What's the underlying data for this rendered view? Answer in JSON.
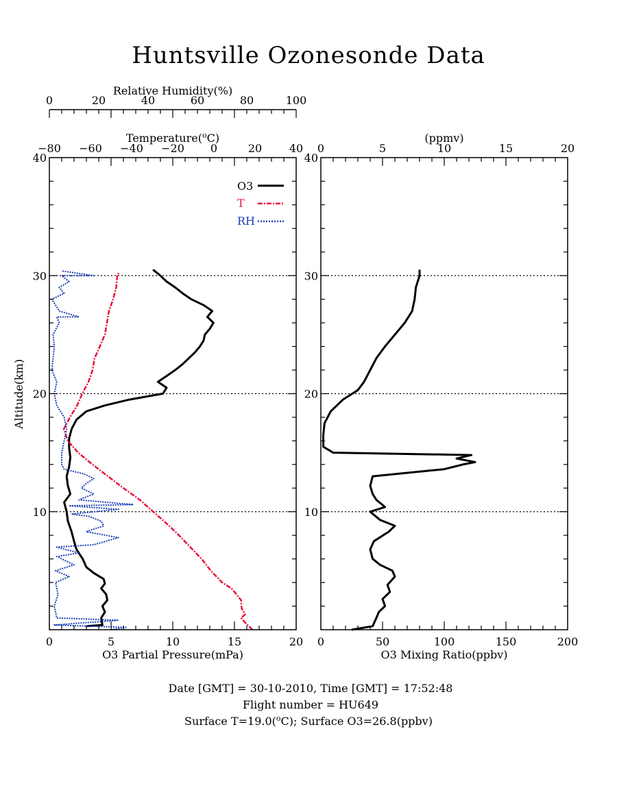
{
  "title": "Huntsville Ozonesonde Data",
  "colors": {
    "o3": "#000000",
    "temperature": "#e8103c",
    "rh": "#1a3fb5",
    "grid": "#000000"
  },
  "footer": {
    "line1": "Date [GMT] = 30-10-2010,  Time [GMT] = 17:52:48",
    "line2": "Flight number = HU649",
    "line3": "Surface T=19.0(°C); Surface O3=26.8(ppbv)"
  },
  "chart_data": [
    {
      "type": "line",
      "panel": "left",
      "ylabel": "Altitude(km)",
      "ylim": [
        0,
        40
      ],
      "yticks": [
        "10",
        "20",
        "30",
        "40"
      ],
      "grid_lines_at": [
        10,
        20,
        30
      ],
      "x_axes": {
        "o3": {
          "label": "O3 Partial Pressure(mPa)",
          "lim": [
            0,
            20
          ],
          "ticks": [
            "0",
            "5",
            "10",
            "15",
            "20"
          ]
        },
        "temperature": {
          "label": "Temperature(°C)",
          "lim": [
            -80,
            40
          ],
          "ticks": [
            "−80",
            "−60",
            "−40",
            "−20",
            "0",
            "20",
            "40"
          ]
        },
        "rh": {
          "label": "Relative Humidity(%)",
          "lim": [
            0,
            100
          ],
          "ticks": [
            "0",
            "20",
            "40",
            "60",
            "80",
            "100"
          ]
        }
      },
      "legend": {
        "position": "top-right",
        "entries": [
          "O3",
          "T",
          "RH"
        ]
      },
      "series": [
        {
          "name": "O3",
          "axis": "o3",
          "points": [
            [
              3.0,
              0.3
            ],
            [
              4.3,
              0.4
            ],
            [
              4.2,
              1.0
            ],
            [
              4.5,
              1.5
            ],
            [
              4.3,
              2.0
            ],
            [
              4.7,
              2.5
            ],
            [
              4.6,
              3.0
            ],
            [
              4.2,
              3.5
            ],
            [
              4.5,
              3.9
            ],
            [
              4.4,
              4.3
            ],
            [
              3.6,
              4.8
            ],
            [
              3.0,
              5.3
            ],
            [
              2.7,
              6.0
            ],
            [
              2.2,
              6.8
            ],
            [
              2.0,
              7.5
            ],
            [
              1.8,
              8.3
            ],
            [
              1.5,
              9.2
            ],
            [
              1.4,
              10.0
            ],
            [
              1.2,
              10.8
            ],
            [
              1.7,
              11.5
            ],
            [
              1.5,
              12.2
            ],
            [
              1.4,
              13.0
            ],
            [
              1.6,
              13.8
            ],
            [
              1.7,
              14.6
            ],
            [
              1.6,
              15.4
            ],
            [
              1.6,
              16.2
            ],
            [
              1.8,
              17.0
            ],
            [
              2.2,
              17.8
            ],
            [
              3.0,
              18.5
            ],
            [
              4.5,
              19.0
            ],
            [
              6.5,
              19.5
            ],
            [
              9.2,
              20.0
            ],
            [
              9.5,
              20.5
            ],
            [
              8.8,
              21.0
            ],
            [
              9.5,
              21.5
            ],
            [
              10.2,
              22.0
            ],
            [
              10.8,
              22.5
            ],
            [
              11.3,
              23.0
            ],
            [
              11.8,
              23.5
            ],
            [
              12.2,
              24.0
            ],
            [
              12.5,
              24.5
            ],
            [
              12.6,
              25.0
            ],
            [
              13.0,
              25.5
            ],
            [
              13.3,
              26.0
            ],
            [
              12.8,
              26.5
            ],
            [
              13.2,
              27.0
            ],
            [
              12.5,
              27.5
            ],
            [
              11.5,
              28.0
            ],
            [
              10.8,
              28.5
            ],
            [
              10.2,
              29.0
            ],
            [
              9.5,
              29.5
            ],
            [
              9.0,
              30.0
            ],
            [
              8.4,
              30.5
            ]
          ]
        },
        {
          "name": "T",
          "axis": "temperature",
          "points": [
            [
              18.8,
              0.0
            ],
            [
              15.8,
              0.5
            ],
            [
              13.2,
              1.0
            ],
            [
              15.2,
              1.3
            ],
            [
              13.5,
              1.8
            ],
            [
              13.2,
              2.5
            ],
            [
              11.0,
              3.0
            ],
            [
              8.5,
              3.5
            ],
            [
              4.0,
              4.0
            ],
            [
              -1.5,
              5.0
            ],
            [
              -6.0,
              6.0
            ],
            [
              -11.5,
              7.0
            ],
            [
              -17.0,
              8.0
            ],
            [
              -23.0,
              9.0
            ],
            [
              -29.5,
              10.0
            ],
            [
              -36.0,
              11.0
            ],
            [
              -44.0,
              12.0
            ],
            [
              -51.5,
              13.0
            ],
            [
              -59.0,
              14.0
            ],
            [
              -66.0,
              15.0
            ],
            [
              -71.0,
              16.0
            ],
            [
              -73.0,
              17.0
            ],
            [
              -70.0,
              18.0
            ],
            [
              -66.5,
              19.0
            ],
            [
              -64.0,
              20.0
            ],
            [
              -61.0,
              21.0
            ],
            [
              -59.0,
              22.0
            ],
            [
              -58.0,
              23.0
            ],
            [
              -55.5,
              24.0
            ],
            [
              -53.0,
              25.0
            ],
            [
              -52.0,
              26.0
            ],
            [
              -51.0,
              27.0
            ],
            [
              -49.0,
              28.0
            ],
            [
              -47.5,
              29.0
            ],
            [
              -47.0,
              30.0
            ],
            [
              -46.0,
              30.3
            ]
          ]
        },
        {
          "name": "RH",
          "axis": "rh",
          "points": [
            [
              25.0,
              0.0
            ],
            [
              31.0,
              0.2
            ],
            [
              2.0,
              0.4
            ],
            [
              28.0,
              0.8
            ],
            [
              3.0,
              1.0
            ],
            [
              2.0,
              2.0
            ],
            [
              3.5,
              3.0
            ],
            [
              2.5,
              4.0
            ],
            [
              8.0,
              4.5
            ],
            [
              2.5,
              5.0
            ],
            [
              10.0,
              5.5
            ],
            [
              3.0,
              6.2
            ],
            [
              12.0,
              6.5
            ],
            [
              3.0,
              7.0
            ],
            [
              18.0,
              7.2
            ],
            [
              28.0,
              7.8
            ],
            [
              15.0,
              8.3
            ],
            [
              22.0,
              8.8
            ],
            [
              21.0,
              9.2
            ],
            [
              16.0,
              9.6
            ],
            [
              9.0,
              9.8
            ],
            [
              28.0,
              10.2
            ],
            [
              8.0,
              10.5
            ],
            [
              34.0,
              10.6
            ],
            [
              12.0,
              11.0
            ],
            [
              18.0,
              11.5
            ],
            [
              13.0,
              12.0
            ],
            [
              15.0,
              12.4
            ],
            [
              18.0,
              12.8
            ],
            [
              14.0,
              13.2
            ],
            [
              6.0,
              13.6
            ],
            [
              5.0,
              14.0
            ],
            [
              5.0,
              15.0
            ],
            [
              6.0,
              16.0
            ],
            [
              7.0,
              17.0
            ],
            [
              6.0,
              18.0
            ],
            [
              3.0,
              19.0
            ],
            [
              2.0,
              20.0
            ],
            [
              3.0,
              21.0
            ],
            [
              1.0,
              22.0
            ],
            [
              1.5,
              23.0
            ],
            [
              2.0,
              24.0
            ],
            [
              1.5,
              25.0
            ],
            [
              4.0,
              26.0
            ],
            [
              3.0,
              26.5
            ],
            [
              12.0,
              26.5
            ],
            [
              4.0,
              27.0
            ],
            [
              1.0,
              28.0
            ],
            [
              6.0,
              28.5
            ],
            [
              4.0,
              29.0
            ],
            [
              8.0,
              29.5
            ],
            [
              5.0,
              30.0
            ],
            [
              18.0,
              30.0
            ],
            [
              5.0,
              30.4
            ]
          ]
        }
      ]
    },
    {
      "type": "line",
      "panel": "right",
      "ylim": [
        0,
        40
      ],
      "yticks": [
        "10",
        "20",
        "30",
        "40"
      ],
      "grid_lines_at": [
        10,
        20,
        30
      ],
      "x_axes": {
        "bottom": {
          "label": "O3 Mixing Ratio(ppbv)",
          "lim": [
            0,
            200
          ],
          "ticks": [
            "0",
            "50",
            "100",
            "150",
            "200"
          ]
        },
        "top": {
          "label": "(ppmv)",
          "lim": [
            0,
            20
          ],
          "ticks": [
            "0",
            "5",
            "10",
            "15",
            "20"
          ]
        }
      },
      "series": [
        {
          "axis": "bottom",
          "points": [
            [
              25.0,
              0.0
            ],
            [
              42.0,
              0.3
            ],
            [
              45.0,
              1.0
            ],
            [
              47.0,
              1.5
            ],
            [
              52.0,
              2.0
            ],
            [
              50.0,
              2.6
            ],
            [
              56.0,
              3.2
            ],
            [
              54.0,
              3.8
            ],
            [
              60.0,
              4.5
            ],
            [
              58.0,
              5.0
            ],
            [
              48.0,
              5.5
            ],
            [
              42.0,
              6.0
            ],
            [
              40.0,
              6.8
            ],
            [
              43.0,
              7.5
            ],
            [
              55.0,
              8.3
            ],
            [
              60.0,
              8.8
            ],
            [
              48.0,
              9.3
            ],
            [
              40.0,
              10.0
            ],
            [
              52.0,
              10.4
            ],
            [
              45.0,
              11.0
            ],
            [
              42.0,
              11.5
            ],
            [
              40.0,
              12.2
            ],
            [
              42.0,
              13.0
            ],
            [
              80.0,
              13.4
            ],
            [
              100.0,
              13.6
            ],
            [
              115.0,
              14.0
            ],
            [
              125.0,
              14.2
            ],
            [
              110.0,
              14.5
            ],
            [
              122.0,
              14.8
            ],
            [
              10.0,
              15.0
            ],
            [
              2.0,
              15.5
            ],
            [
              2.0,
              16.5
            ],
            [
              3.0,
              17.5
            ],
            [
              8.0,
              18.5
            ],
            [
              18.0,
              19.5
            ],
            [
              30.0,
              20.3
            ],
            [
              35.0,
              21.0
            ],
            [
              40.0,
              22.0
            ],
            [
              45.0,
              23.0
            ],
            [
              52.0,
              24.0
            ],
            [
              60.0,
              25.0
            ],
            [
              68.0,
              26.0
            ],
            [
              74.0,
              27.0
            ],
            [
              76.0,
              28.0
            ],
            [
              77.0,
              29.0
            ],
            [
              80.0,
              30.0
            ],
            [
              80.0,
              30.5
            ]
          ]
        }
      ]
    }
  ]
}
